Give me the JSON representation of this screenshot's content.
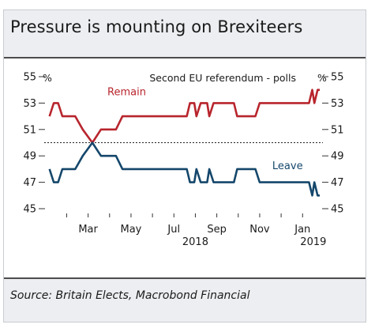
{
  "title": "Pressure is mounting on Brexiteers",
  "source": "Source: Britain Elects, Macrobond Financial",
  "chart_data": {
    "type": "line",
    "subtitle": "Second EU referendum - polls",
    "left_unit": "%",
    "right_unit": "%",
    "ylim": [
      45,
      55
    ],
    "y_ticks": [
      45,
      47,
      49,
      51,
      53,
      55
    ],
    "reference_line": 50,
    "x_tick_labels": [
      {
        "label": "Mar",
        "month": 3
      },
      {
        "label": "May",
        "month": 5
      },
      {
        "label": "Jul",
        "month": 7
      },
      {
        "label": "Sep",
        "month": 9
      },
      {
        "label": "Nov",
        "month": 11
      },
      {
        "label": "Jan",
        "month": 13
      }
    ],
    "x_year_labels": [
      {
        "label": "2018",
        "month": 8
      },
      {
        "label": "2019",
        "month": 13.5
      }
    ],
    "xlim": [
      1.1,
      13.8
    ],
    "series": [
      {
        "name": "Remain",
        "color": "#b8252d",
        "label_at": {
          "month": 4.8,
          "value": 53.6
        },
        "points": [
          [
            1.2,
            52
          ],
          [
            1.4,
            53
          ],
          [
            1.6,
            53
          ],
          [
            1.8,
            52
          ],
          [
            2.4,
            52
          ],
          [
            2.75,
            51
          ],
          [
            3.2,
            50
          ],
          [
            3.6,
            51
          ],
          [
            4.3,
            51
          ],
          [
            4.6,
            52
          ],
          [
            7.6,
            52
          ],
          [
            7.75,
            53
          ],
          [
            7.95,
            53
          ],
          [
            8.05,
            52
          ],
          [
            8.25,
            53
          ],
          [
            8.55,
            53
          ],
          [
            8.65,
            52
          ],
          [
            8.85,
            53
          ],
          [
            9.8,
            53
          ],
          [
            9.95,
            52
          ],
          [
            10.8,
            52
          ],
          [
            11.0,
            53
          ],
          [
            13.3,
            53
          ],
          [
            13.45,
            54
          ],
          [
            13.55,
            53
          ],
          [
            13.7,
            54
          ],
          [
            13.8,
            54
          ]
        ]
      },
      {
        "name": "Leave",
        "color": "#15476b",
        "label_at": {
          "month": 12.3,
          "value": 48.0
        },
        "points": [
          [
            1.2,
            48
          ],
          [
            1.4,
            47
          ],
          [
            1.6,
            47
          ],
          [
            1.8,
            48
          ],
          [
            2.4,
            48
          ],
          [
            2.75,
            49
          ],
          [
            3.2,
            50
          ],
          [
            3.6,
            49
          ],
          [
            4.3,
            49
          ],
          [
            4.6,
            48
          ],
          [
            7.6,
            48
          ],
          [
            7.75,
            47
          ],
          [
            7.95,
            47
          ],
          [
            8.05,
            48
          ],
          [
            8.25,
            47
          ],
          [
            8.55,
            47
          ],
          [
            8.65,
            48
          ],
          [
            8.85,
            47
          ],
          [
            9.8,
            47
          ],
          [
            9.95,
            48
          ],
          [
            10.8,
            48
          ],
          [
            11.0,
            47
          ],
          [
            13.3,
            47
          ],
          [
            13.45,
            46
          ],
          [
            13.55,
            47
          ],
          [
            13.7,
            46
          ],
          [
            13.8,
            46
          ]
        ]
      }
    ]
  }
}
